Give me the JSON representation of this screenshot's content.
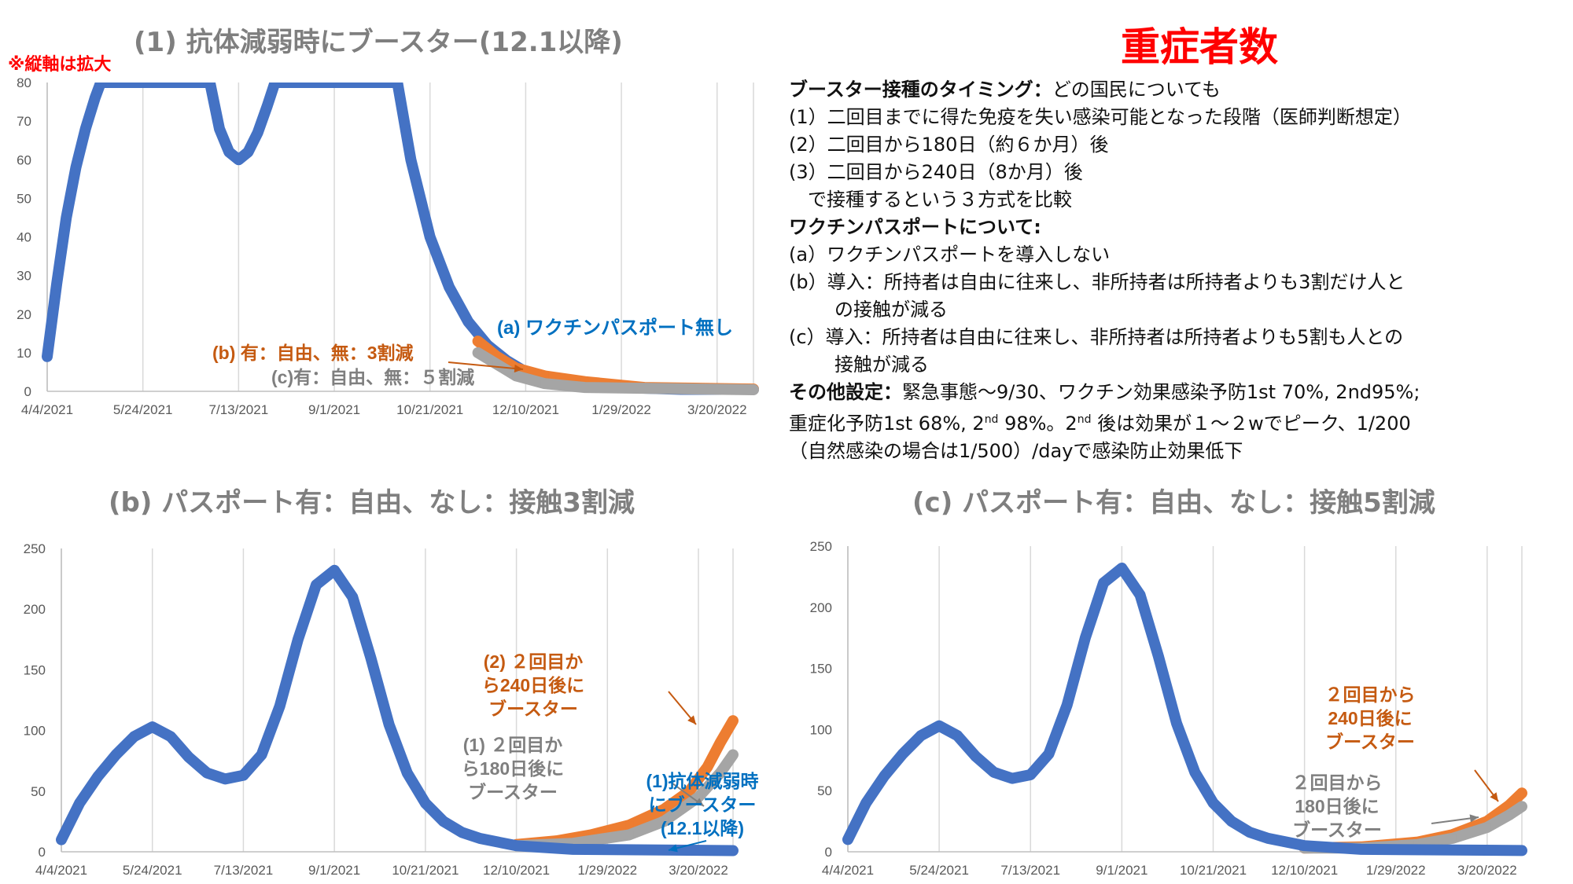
{
  "main_title": "重症者数",
  "zoom_note": "※縦軸は拡大",
  "notes": {
    "l1_bold": "ブースター接種のタイミング：",
    "l1_rest": "どの国民についても",
    "l2": "(1）二回目までに得た免疫を失い感染可能となった段階（医師判断想定）",
    "l3": "(2）二回目から180日（約６か月）後",
    "l4": "(3）二回目から240日（8か月）後",
    "l5": "で接種するという３方式を比較",
    "l6_bold": "ワクチンパスポートについて:",
    "l7": "(a）ワクチンパスポートを導入しない",
    "l8": "(b）導入：所持者は自由に往来し、非所持者は所持者よりも3割だけ人と",
    "l9": "の接触が減る",
    "l10": "(c）導入：所持者は自由に往来し、非所持者は所持者よりも5割も人との",
    "l11": "接触が減る",
    "l12_bold": "その他設定：",
    "l12_rest": "緊急事態～9/30、ワクチン効果感染予防1st 70%, 2nd95%;",
    "l13_a": "重症化予防1st 68%, 2",
    "l13_sup1": "nd",
    "l13_b": " 98%。2",
    "l13_sup2": "nd",
    "l13_c": " 後は効果が１～２wでピーク、1/200",
    "l14": "（自然感染の場合は1/500）/dayで感染防止効果低下"
  },
  "colors": {
    "blue": "#4472c4",
    "orange": "#ed7d31",
    "gray": "#a5a5a5",
    "blue_text": "#0070c0",
    "orange_text": "#c55a11",
    "gray_text": "#7f7f7f",
    "grid": "#d9d9d9"
  },
  "chart_data": [
    {
      "id": "chart1",
      "type": "line",
      "title": "(1) 抗体減弱時にブースター(12.1以降)",
      "x_tick_labels": [
        "4/4/2021",
        "5/24/2021",
        "7/13/2021",
        "9/1/2021",
        "10/21/2021",
        "12/10/2021",
        "1/29/2022",
        "3/20/2022"
      ],
      "x_range": [
        "4/4/2021",
        "4/8/2022"
      ],
      "ylim": [
        0,
        80
      ],
      "y_ticks": [
        0,
        10,
        20,
        30,
        40,
        50,
        60,
        70,
        80
      ],
      "grid": "vertical",
      "series": [
        {
          "name": "(a) ワクチンパスポート無し",
          "color": "#4472c4",
          "points": [
            [
              "4/4/2021",
              9
            ],
            [
              "4/9/2021",
              28
            ],
            [
              "4/14/2021",
              45
            ],
            [
              "4/19/2021",
              58
            ],
            [
              "4/24/2021",
              68
            ],
            [
              "4/29/2021",
              76
            ],
            [
              "5/2/2021",
              80
            ],
            [
              "5/13/2021",
              80
            ],
            [
              "6/28/2021",
              80
            ],
            [
              "7/3/2021",
              68
            ],
            [
              "7/8/2021",
              62
            ],
            [
              "7/13/2021",
              60
            ],
            [
              "7/18/2021",
              62
            ],
            [
              "7/23/2021",
              67
            ],
            [
              "7/28/2021",
              74
            ],
            [
              "8/1/2021",
              80
            ],
            [
              "10/4/2021",
              80
            ],
            [
              "10/11/2021",
              60
            ],
            [
              "10/21/2021",
              40
            ],
            [
              "10/31/2021",
              27
            ],
            [
              "11/10/2021",
              18
            ],
            [
              "11/20/2021",
              12
            ],
            [
              "11/30/2021",
              8
            ],
            [
              "12/10/2021",
              5
            ],
            [
              "12/25/2021",
              3
            ],
            [
              "1/10/2022",
              1.5
            ],
            [
              "1/29/2022",
              1
            ],
            [
              "3/1/2022",
              0.5
            ],
            [
              "4/8/2022",
              0.5
            ]
          ]
        },
        {
          "name": "(b) 有：自由、無：3割減",
          "color": "#ed7d31",
          "points": [
            [
              "11/15/2021",
              13
            ],
            [
              "11/25/2021",
              9
            ],
            [
              "12/5/2021",
              6
            ],
            [
              "12/20/2021",
              4
            ],
            [
              "1/10/2022",
              2.5
            ],
            [
              "2/10/2022",
              1
            ],
            [
              "4/8/2022",
              0.6
            ]
          ]
        },
        {
          "name": "(c)有：自由、無：５割減",
          "color": "#a5a5a5",
          "points": [
            [
              "11/15/2021",
              10
            ],
            [
              "11/25/2021",
              7
            ],
            [
              "12/5/2021",
              4
            ],
            [
              "12/20/2021",
              2
            ],
            [
              "1/10/2022",
              1
            ],
            [
              "4/8/2022",
              0.4
            ]
          ]
        }
      ]
    },
    {
      "id": "chart2",
      "type": "line",
      "title": "(b) パスポート有：自由、なし：接触3割減",
      "x_tick_labels": [
        "4/4/2021",
        "5/24/2021",
        "7/13/2021",
        "9/1/2021",
        "10/21/2021",
        "12/10/2021",
        "1/29/2022",
        "3/20/2022"
      ],
      "x_range": [
        "4/4/2021",
        "4/8/2022"
      ],
      "ylim": [
        0,
        250
      ],
      "y_ticks": [
        0,
        50,
        100,
        150,
        200,
        250
      ],
      "grid": "vertical",
      "series": [
        {
          "name": "(2) ２回目から240日後にブースター",
          "color": "#ed7d31",
          "points": [
            [
              "12/10/2021",
              6
            ],
            [
              "1/1/2022",
              9
            ],
            [
              "1/20/2022",
              14
            ],
            [
              "2/10/2022",
              22
            ],
            [
              "3/1/2022",
              35
            ],
            [
              "3/15/2022",
              50
            ],
            [
              "3/25/2022",
              70
            ],
            [
              "4/1/2022",
              90
            ],
            [
              "4/8/2022",
              108
            ]
          ]
        },
        {
          "name": "(1) ２回目から180日後にブースター",
          "color": "#a5a5a5",
          "points": [
            [
              "12/10/2021",
              5
            ],
            [
              "1/10/2022",
              7
            ],
            [
              "2/10/2022",
              14
            ],
            [
              "3/1/2022",
              25
            ],
            [
              "3/20/2022",
              45
            ],
            [
              "4/1/2022",
              65
            ],
            [
              "4/8/2022",
              80
            ]
          ]
        },
        {
          "name": "(1)抗体減弱時にブースター(12.1以降)",
          "color": "#4472c4",
          "points": [
            [
              "4/4/2021",
              10
            ],
            [
              "4/14/2021",
              40
            ],
            [
              "4/24/2021",
              62
            ],
            [
              "5/4/2021",
              80
            ],
            [
              "5/14/2021",
              95
            ],
            [
              "5/24/2021",
              103
            ],
            [
              "6/3/2021",
              95
            ],
            [
              "6/13/2021",
              78
            ],
            [
              "6/23/2021",
              65
            ],
            [
              "7/3/2021",
              60
            ],
            [
              "7/13/2021",
              63
            ],
            [
              "7/23/2021",
              80
            ],
            [
              "8/2/2021",
              120
            ],
            [
              "8/12/2021",
              175
            ],
            [
              "8/22/2021",
              220
            ],
            [
              "9/1/2021",
              232
            ],
            [
              "9/11/2021",
              210
            ],
            [
              "9/21/2021",
              160
            ],
            [
              "10/1/2021",
              105
            ],
            [
              "10/11/2021",
              65
            ],
            [
              "10/21/2021",
              40
            ],
            [
              "10/31/2021",
              25
            ],
            [
              "11/10/2021",
              16
            ],
            [
              "11/20/2021",
              11
            ],
            [
              "12/10/2021",
              5
            ],
            [
              "1/10/2022",
              2
            ],
            [
              "4/8/2022",
              1
            ]
          ]
        }
      ]
    },
    {
      "id": "chart3",
      "type": "line",
      "title": "(c) パスポート有：自由、なし：接触5割減",
      "x_tick_labels": [
        "4/4/2021",
        "5/24/2021",
        "7/13/2021",
        "9/1/2021",
        "10/21/2021",
        "12/10/2021",
        "1/29/2022",
        "3/20/2022"
      ],
      "x_range": [
        "4/4/2021",
        "4/8/2022"
      ],
      "ylim": [
        0,
        250
      ],
      "y_ticks": [
        0,
        50,
        100,
        150,
        200,
        250
      ],
      "grid": "vertical",
      "series": [
        {
          "name": "２回目から240日後にブースター",
          "color": "#ed7d31",
          "points": [
            [
              "12/10/2021",
              3
            ],
            [
              "1/10/2022",
              4
            ],
            [
              "2/10/2022",
              8
            ],
            [
              "3/1/2022",
              14
            ],
            [
              "3/20/2022",
              25
            ],
            [
              "4/1/2022",
              38
            ],
            [
              "4/8/2022",
              48
            ]
          ]
        },
        {
          "name": "２回目から180日後にブースター",
          "color": "#a5a5a5",
          "points": [
            [
              "12/10/2021",
              3
            ],
            [
              "1/10/2022",
              3
            ],
            [
              "2/10/2022",
              6
            ],
            [
              "3/1/2022",
              11
            ],
            [
              "3/20/2022",
              20
            ],
            [
              "4/1/2022",
              30
            ],
            [
              "4/8/2022",
              37
            ]
          ]
        },
        {
          "name": "",
          "color": "#4472c4",
          "points": [
            [
              "4/4/2021",
              10
            ],
            [
              "4/14/2021",
              40
            ],
            [
              "4/24/2021",
              62
            ],
            [
              "5/4/2021",
              80
            ],
            [
              "5/14/2021",
              95
            ],
            [
              "5/24/2021",
              103
            ],
            [
              "6/3/2021",
              95
            ],
            [
              "6/13/2021",
              78
            ],
            [
              "6/23/2021",
              65
            ],
            [
              "7/3/2021",
              60
            ],
            [
              "7/13/2021",
              63
            ],
            [
              "7/23/2021",
              80
            ],
            [
              "8/2/2021",
              120
            ],
            [
              "8/12/2021",
              175
            ],
            [
              "8/22/2021",
              220
            ],
            [
              "9/1/2021",
              232
            ],
            [
              "9/11/2021",
              210
            ],
            [
              "9/21/2021",
              160
            ],
            [
              "10/1/2021",
              105
            ],
            [
              "10/11/2021",
              65
            ],
            [
              "10/21/2021",
              40
            ],
            [
              "10/31/2021",
              25
            ],
            [
              "11/10/2021",
              16
            ],
            [
              "11/20/2021",
              11
            ],
            [
              "12/10/2021",
              5
            ],
            [
              "1/10/2022",
              2
            ],
            [
              "4/8/2022",
              1
            ]
          ]
        }
      ]
    }
  ]
}
